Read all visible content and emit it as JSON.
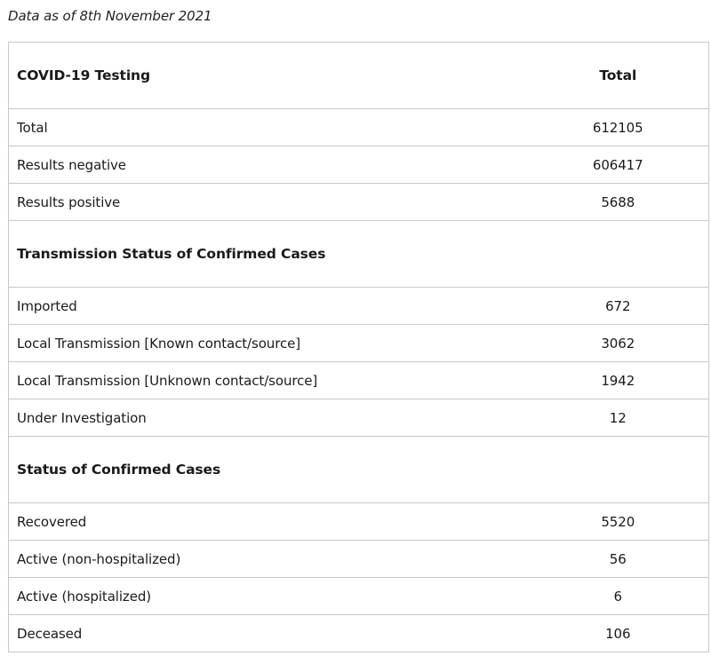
{
  "caption": "Data as of 8th November 2021",
  "table": {
    "header": {
      "label": "COVID-19 Testing",
      "value": "Total"
    },
    "testing_rows": [
      {
        "label": "Total",
        "value": "612105"
      },
      {
        "label": "Results negative",
        "value": "606417"
      },
      {
        "label": "Results positive",
        "value": "5688"
      }
    ],
    "transmission_section": {
      "title": "Transmission Status of Confirmed Cases",
      "rows": [
        {
          "label": "Imported",
          "value": "672"
        },
        {
          "label": "Local Transmission [Known contact/source]",
          "value": "3062"
        },
        {
          "label": "Local Transmission [Unknown contact/source]",
          "value": "1942"
        },
        {
          "label": "Under Investigation",
          "value": "12"
        }
      ]
    },
    "status_section": {
      "title": "Status of Confirmed Cases",
      "rows": [
        {
          "label": "Recovered",
          "value": "5520"
        },
        {
          "label": "Active (non-hospitalized)",
          "value": "56"
        },
        {
          "label": "Active (hospitalized)",
          "value": "6"
        },
        {
          "label": "Deceased",
          "value": "106"
        }
      ]
    }
  }
}
